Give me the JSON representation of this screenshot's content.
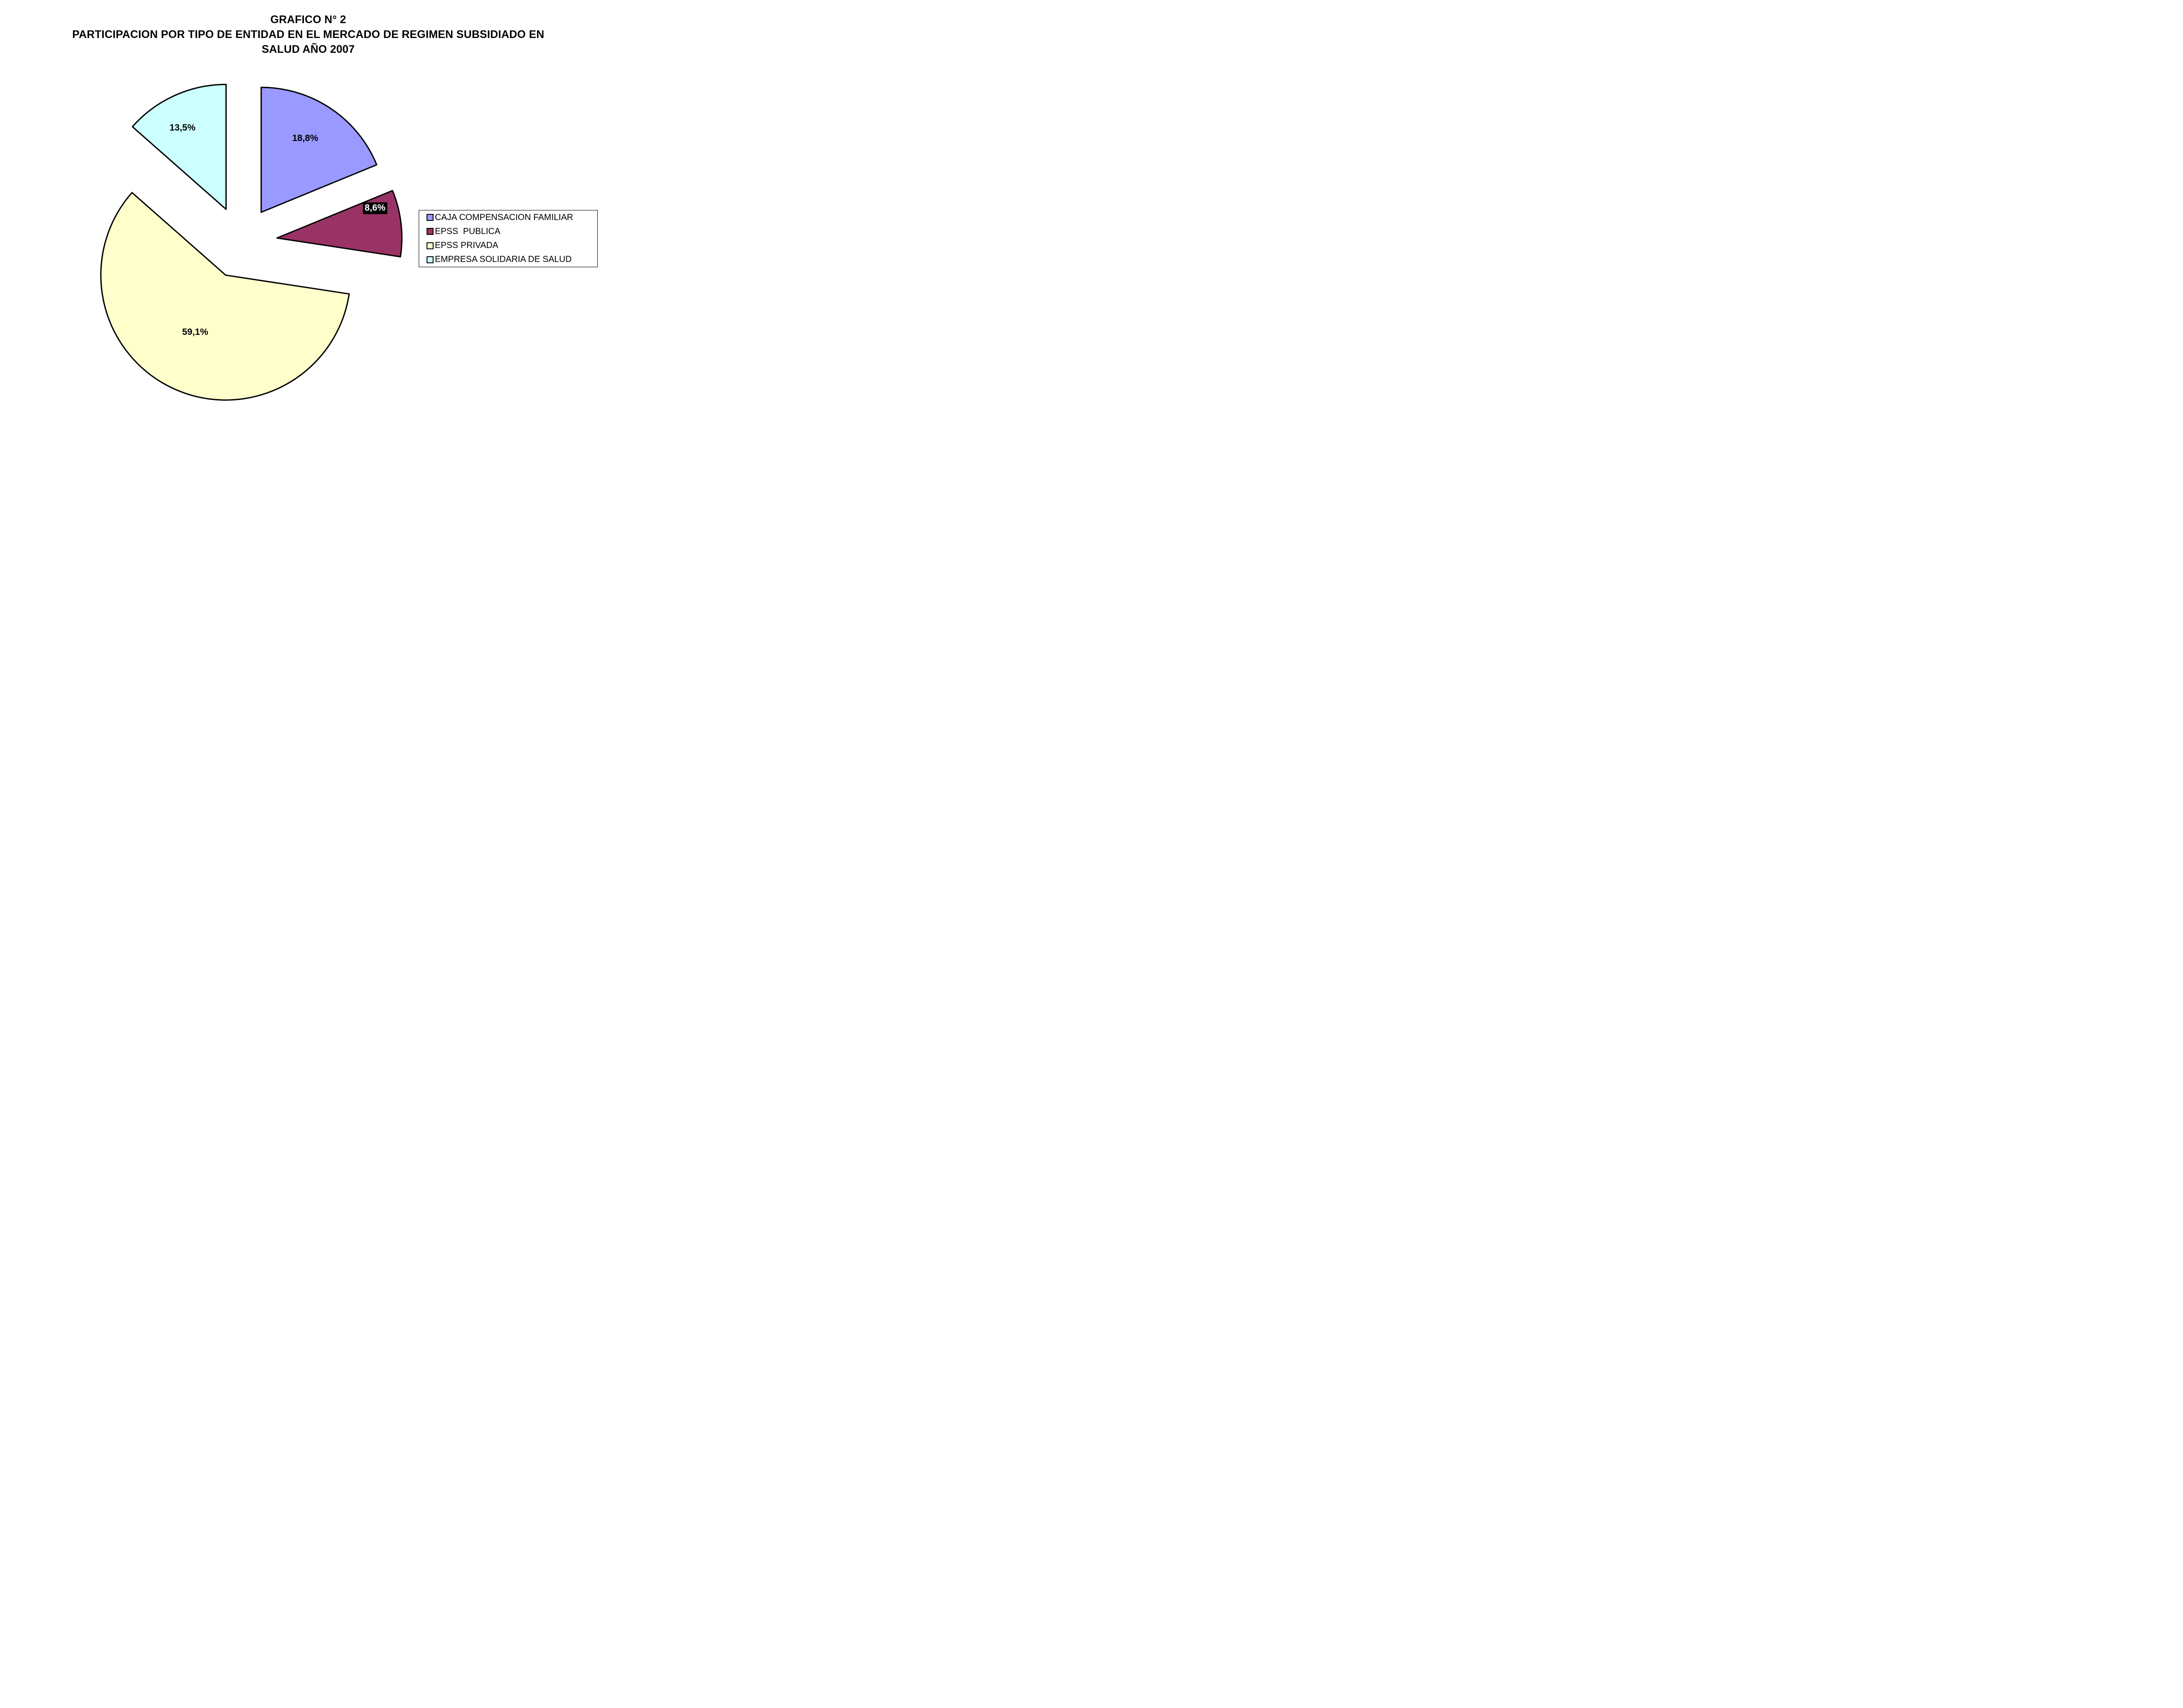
{
  "title": {
    "line1": "GRAFICO N° 2",
    "line2": "PARTICIPACION POR TIPO DE ENTIDAD EN EL MERCADO DE REGIMEN SUBSIDIADO EN",
    "line3": "SALUD AÑO 2007"
  },
  "chart_data": {
    "type": "pie",
    "title": "GRAFICO N° 2 - PARTICIPACION POR TIPO DE ENTIDAD EN EL MERCADO DE REGIMEN SUBSIDIADO EN SALUD AÑO 2007",
    "categories": [
      "CAJA COMPENSACION FAMILIAR",
      "EPSS  PUBLICA",
      "EPSS PRIVADA",
      "EMPRESA SOLIDARIA DE SALUD"
    ],
    "values": [
      18.8,
      8.6,
      59.1,
      13.5
    ],
    "labels": [
      "18,8%",
      "8,6%",
      "59,1%",
      "13,5%"
    ],
    "colors": [
      "#9999FF",
      "#993366",
      "#FFFFCC",
      "#CCFFFF"
    ],
    "start_angle_deg": 0,
    "direction": "clockwise",
    "exploded": true,
    "slice_border_color": "#000000",
    "legend_position": "right"
  },
  "legend": {
    "items": [
      {
        "label": "CAJA COMPENSACION FAMILIAR",
        "color": "#9999FF"
      },
      {
        "label": "EPSS  PUBLICA",
        "color": "#993366"
      },
      {
        "label": "EPSS PRIVADA",
        "color": "#FFFFCC"
      },
      {
        "label": "EMPRESA SOLIDARIA DE SALUD",
        "color": "#CCFFFF"
      }
    ]
  }
}
